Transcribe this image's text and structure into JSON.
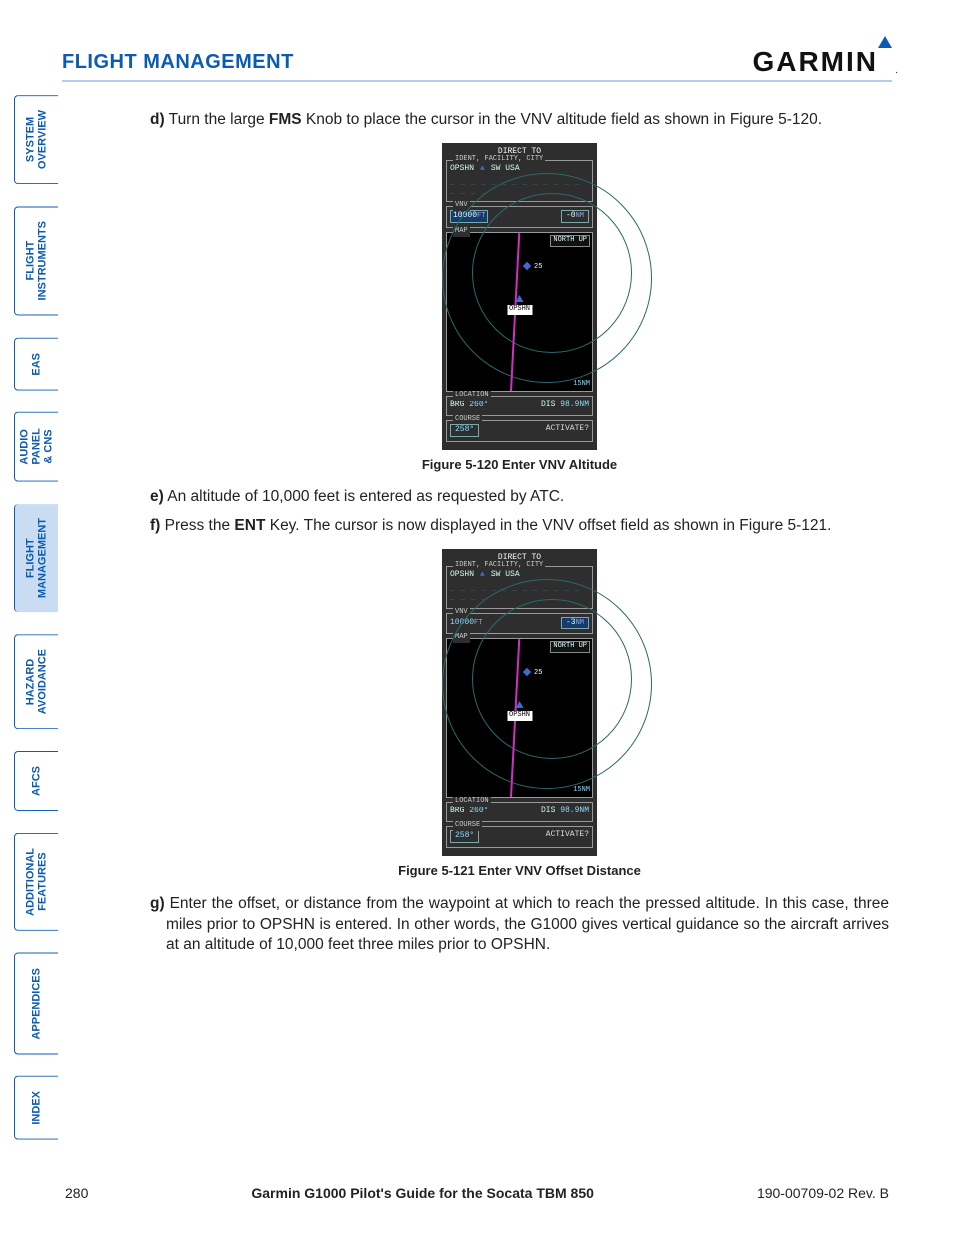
{
  "header": {
    "section_title": "FLIGHT MANAGEMENT",
    "logo_text": "GARMIN"
  },
  "sidebar": {
    "items": [
      {
        "label": "SYSTEM\nOVERVIEW",
        "active": false
      },
      {
        "label": "FLIGHT\nINSTRUMENTS",
        "active": false
      },
      {
        "label": "EAS",
        "active": false
      },
      {
        "label": "AUDIO PANEL\n& CNS",
        "active": false
      },
      {
        "label": "FLIGHT\nMANAGEMENT",
        "active": true
      },
      {
        "label": "HAZARD\nAVOIDANCE",
        "active": false
      },
      {
        "label": "AFCS",
        "active": false
      },
      {
        "label": "ADDITIONAL\nFEATURES",
        "active": false
      },
      {
        "label": "APPENDICES",
        "active": false
      },
      {
        "label": "INDEX",
        "active": false
      }
    ]
  },
  "steps": {
    "d": {
      "label": "d)",
      "pre": "Turn the large ",
      "bold": "FMS",
      "post": " Knob to place the cursor in the VNV altitude field as shown in Figure 5-120."
    },
    "e": {
      "label": "e)",
      "text": "An altitude of 10,000 feet is entered as requested by ATC."
    },
    "f": {
      "label": "f)",
      "pre": " Press the ",
      "bold": "ENT",
      "post": " Key.  The cursor is now displayed in the VNV offset field as shown in Figure 5-121."
    },
    "g": {
      "label": "g)",
      "text": "Enter the offset, or distance from the waypoint at which to reach the pressed altitude.  In this case, three miles prior to OPSHN is entered.  In other words, the G1000 gives vertical guidance so the aircraft arrives at an altitude of 10,000 feet three miles prior to OPSHN."
    }
  },
  "figures": {
    "f120": {
      "caption": "Figure 5-120  Enter VNV Altitude",
      "title": "DIRECT TO",
      "ident_grp": "IDENT, FACILITY, CITY",
      "ident": "OPSHN",
      "region": "SW USA",
      "vnv_grp": "VNV",
      "alt_value": "10000",
      "alt_unit": "FT",
      "offset_value": "-0",
      "offset_unit": "NM",
      "offset_hl": false,
      "map_grp": "MAP",
      "north": "NORTH UP",
      "wp_label": "OPSHN",
      "wp2_label": "25",
      "scale": "15NM",
      "loc_grp": "LOCATION",
      "brg_lbl": "BRG",
      "brg_val": "260°",
      "dis_lbl": "DIS",
      "dis_val": "98.9NM",
      "crs_grp": "COURSE",
      "crs_val": "258°",
      "activate": "ACTIVATE?"
    },
    "f121": {
      "caption": "Figure 5-121  Enter VNV Offset Distance",
      "title": "DIRECT TO",
      "ident_grp": "IDENT, FACILITY, CITY",
      "ident": "OPSHN",
      "region": "SW USA",
      "vnv_grp": "VNV",
      "alt_value": "10000",
      "alt_unit": "FT",
      "offset_value": "-3",
      "offset_unit": "NM",
      "offset_hl": true,
      "map_grp": "MAP",
      "north": "NORTH UP",
      "wp_label": "OPSHN",
      "wp2_label": "25",
      "scale": "15NM",
      "loc_grp": "LOCATION",
      "brg_lbl": "BRG",
      "brg_val": "260°",
      "dis_lbl": "DIS",
      "dis_val": "98.9NM",
      "crs_grp": "COURSE",
      "crs_val": "258°",
      "activate": "ACTIVATE?"
    }
  },
  "footer": {
    "page": "280",
    "guide": "Garmin G1000 Pilot's Guide for the Socata TBM 850",
    "doc": "190-00709-02  Rev. B"
  },
  "colors": {
    "brand_blue": "#0a5bb3",
    "tab_active_bg": "#c9dcf2",
    "screen_bg": "#2e2e2e",
    "map_bg": "#000000",
    "cyan": "#88ddff",
    "magenta_track": "#d030c0",
    "highlight_bg": "#163a6a"
  }
}
